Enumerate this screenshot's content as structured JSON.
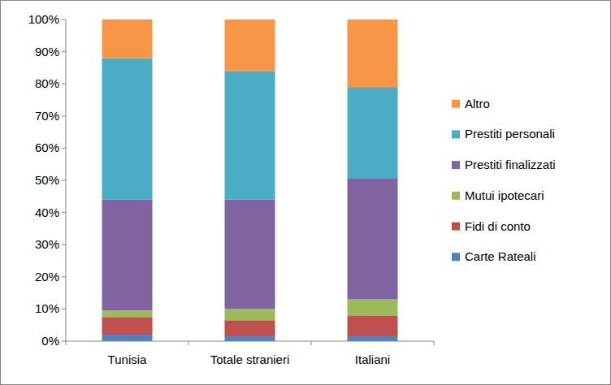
{
  "chart_data": {
    "type": "bar",
    "stacked": true,
    "grid": false,
    "legend": "right",
    "categories": [
      "Tunisia",
      "Totale stranieri",
      "Italiani"
    ],
    "ylim": [
      0,
      100
    ],
    "yticks": [
      {
        "value": 0,
        "label": "0%"
      },
      {
        "value": 10,
        "label": "10%"
      },
      {
        "value": 20,
        "label": "20%"
      },
      {
        "value": 30,
        "label": "30%"
      },
      {
        "value": 40,
        "label": "40%"
      },
      {
        "value": 50,
        "label": "50%"
      },
      {
        "value": 60,
        "label": "60%"
      },
      {
        "value": 70,
        "label": "70%"
      },
      {
        "value": 80,
        "label": "80%"
      },
      {
        "value": 90,
        "label": "90%"
      },
      {
        "value": 100,
        "label": "100%"
      }
    ],
    "series": [
      {
        "name": "Carte Rateali",
        "color": "#4f81bd",
        "values": [
          2,
          1.5,
          1.5
        ]
      },
      {
        "name": "Fidi di conto",
        "color": "#c0504d",
        "values": [
          5.5,
          5,
          6.5
        ]
      },
      {
        "name": "Mutui ipotecari",
        "color": "#9bbb59",
        "values": [
          2,
          3.5,
          5
        ]
      },
      {
        "name": "Prestiti finalizzati",
        "color": "#8064a2",
        "values": [
          34.5,
          34,
          37.5
        ]
      },
      {
        "name": "Prestiti personali",
        "color": "#4bacc6",
        "values": [
          44,
          40,
          28.5
        ]
      },
      {
        "name": "Altro",
        "color": "#f79646",
        "values": [
          12,
          16,
          21
        ]
      }
    ]
  }
}
